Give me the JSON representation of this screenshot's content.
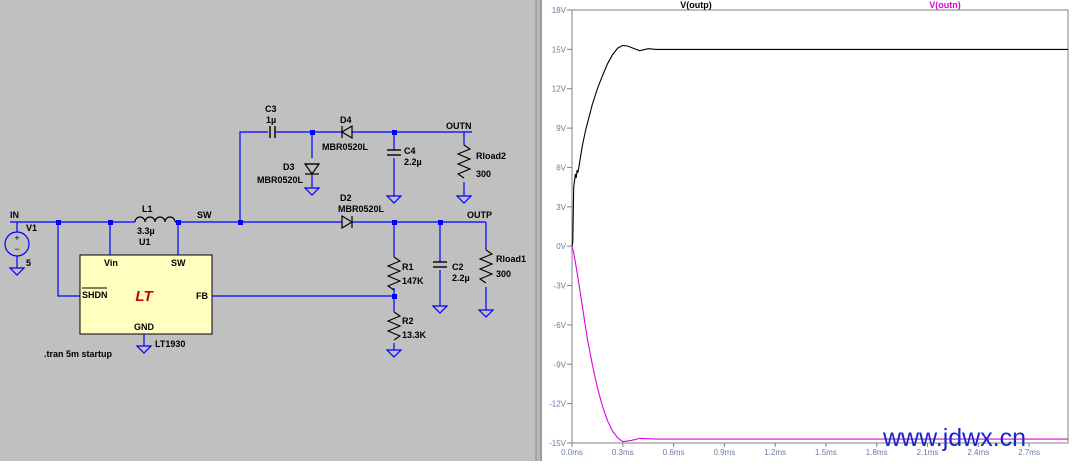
{
  "schematic": {
    "nets": {
      "in": "IN",
      "sw": "SW",
      "outn": "OUTN",
      "outp": "OUTP"
    },
    "v1": {
      "name": "V1",
      "value": "5"
    },
    "l1": {
      "name": "L1",
      "value": "3.3µ"
    },
    "u1": {
      "name": "U1",
      "part": "LT1930",
      "pin_vin": "Vin",
      "pin_sw": "SW",
      "pin_shdn": "SHDN",
      "pin_fb": "FB",
      "pin_gnd": "GND",
      "logo": "LT"
    },
    "c3": {
      "name": "C3",
      "value": "1µ"
    },
    "d4": {
      "name": "D4",
      "part": "MBR0520L"
    },
    "d3": {
      "name": "D3",
      "part": "MBR0520L"
    },
    "c4": {
      "name": "C4",
      "value": "2.2µ"
    },
    "rload2": {
      "name": "Rload2",
      "value": "300"
    },
    "d2": {
      "name": "D2",
      "part": "MBR0520L"
    },
    "r1": {
      "name": "R1",
      "value": "147K"
    },
    "r2": {
      "name": "R2",
      "value": "13.3K"
    },
    "c2": {
      "name": "C2",
      "value": "2.2µ"
    },
    "rload1": {
      "name": "Rload1",
      "value": "300"
    },
    "directive": ".tran 5m startup"
  },
  "colors": {
    "wire": "#0000ff",
    "ic_fill": "#ffffc0",
    "schematic_bg": "#c0c0c0",
    "trace_outp": "#000000",
    "trace_outn": "#e000e0",
    "axis_label": "#6a7aa8"
  },
  "chart_data": {
    "type": "line",
    "title": "",
    "xlabel": "",
    "ylabel": "",
    "xlim": [
      0,
      2.93
    ],
    "ylim": [
      -15,
      18
    ],
    "grid": false,
    "x_ticks": [
      "0.0ms",
      "0.3ms",
      "0.6ms",
      "0.9ms",
      "1.2ms",
      "1.5ms",
      "1.8ms",
      "2.1ms",
      "2.4ms",
      "2.7ms"
    ],
    "x_tick_values": [
      0,
      0.3,
      0.6,
      0.9,
      1.2,
      1.5,
      1.8,
      2.1,
      2.4,
      2.7
    ],
    "y_ticks": [
      "18V",
      "15V",
      "12V",
      "9V",
      "6V",
      "3V",
      "0V",
      "-3V",
      "-6V",
      "-9V",
      "-12V",
      "-15V"
    ],
    "y_tick_values": [
      18,
      15,
      12,
      9,
      6,
      3,
      0,
      -3,
      -6,
      -9,
      -12,
      -15
    ],
    "series": [
      {
        "name": "V(outp)",
        "color": "#000000",
        "x": [
          0,
          0.005,
          0.01,
          0.02,
          0.025,
          0.03,
          0.035,
          0.04,
          0.05,
          0.06,
          0.08,
          0.1,
          0.12,
          0.15,
          0.18,
          0.21,
          0.24,
          0.27,
          0.3,
          0.33,
          0.36,
          0.4,
          0.45,
          0.5,
          0.6,
          1.0,
          1.5,
          2.0,
          2.5,
          2.93
        ],
        "y": [
          0,
          0.3,
          4.5,
          5.5,
          5.2,
          5.8,
          5.6,
          6.0,
          6.8,
          7.6,
          8.8,
          9.8,
          10.8,
          12.0,
          13.0,
          13.9,
          14.6,
          15.1,
          15.3,
          15.25,
          15.1,
          14.9,
          15.05,
          15.0,
          15.0,
          15.0,
          15.0,
          15.0,
          15.0,
          15.0
        ]
      },
      {
        "name": "V(outn)",
        "color": "#e000e0",
        "x": [
          0,
          0.01,
          0.03,
          0.06,
          0.09,
          0.12,
          0.15,
          0.18,
          0.21,
          0.24,
          0.27,
          0.3,
          0.35,
          0.4,
          0.5,
          0.6,
          1.0,
          1.5,
          2.0,
          2.5,
          2.93
        ],
        "y": [
          0,
          -0.5,
          -2.0,
          -4.5,
          -7.0,
          -9.0,
          -10.8,
          -12.2,
          -13.3,
          -14.1,
          -14.6,
          -14.9,
          -14.8,
          -14.65,
          -14.7,
          -14.7,
          -14.7,
          -14.7,
          -14.7,
          -14.7,
          -14.7
        ]
      }
    ]
  },
  "watermark": "www.jdwx.cn"
}
